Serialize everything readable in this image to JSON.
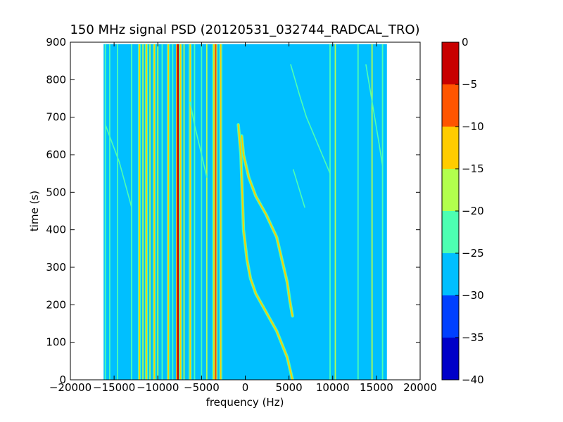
{
  "chart_data": {
    "type": "heatmap",
    "title": "150 MHz signal PSD (20120531_032744_RADCAL_TRO)",
    "xlabel": "frequency (Hz)",
    "ylabel": "time (s)",
    "xlim": [
      -20000,
      20000
    ],
    "ylim": [
      0,
      900
    ],
    "xticks": [
      -20000,
      -15000,
      -10000,
      -5000,
      0,
      5000,
      10000,
      15000,
      20000
    ],
    "xtick_labels": [
      "−20000",
      "−15000",
      "−10000",
      "−5000",
      "0",
      "5000",
      "10000",
      "15000",
      "20000"
    ],
    "yticks": [
      0,
      100,
      200,
      300,
      400,
      500,
      600,
      700,
      800,
      900
    ],
    "ytick_labels": [
      "0",
      "100",
      "200",
      "300",
      "400",
      "500",
      "600",
      "700",
      "800",
      "900"
    ],
    "data_extent": {
      "freq_range": [
        -16200,
        16200
      ],
      "time_range": [
        0,
        895
      ]
    },
    "background_level": -27.5,
    "colorbar": {
      "levels": [
        -40,
        -35,
        -30,
        -25,
        -20,
        -15,
        -10,
        -5,
        0
      ],
      "tick_labels": [
        "−40",
        "−35",
        "−30",
        "−25",
        "−20",
        "−15",
        "−10",
        "−5",
        "0"
      ],
      "colors": [
        "#0000c8",
        "#0040ff",
        "#00bfff",
        "#4dffb2",
        "#b2ff4d",
        "#ffcc00",
        "#ff5500",
        "#c80000"
      ]
    },
    "vertical_lines": [
      {
        "freq": -16000,
        "level": -22.5
      },
      {
        "freq": -15500,
        "level": -22.5
      },
      {
        "freq": -14600,
        "level": -22.5
      },
      {
        "freq": -13000,
        "level": -22.5
      },
      {
        "freq": -12100,
        "level": -12.5
      },
      {
        "freq": -11700,
        "level": -17.5
      },
      {
        "freq": -11300,
        "level": -12.5
      },
      {
        "freq": -10900,
        "level": -17.5
      },
      {
        "freq": -10400,
        "level": -12.5
      },
      {
        "freq": -10000,
        "level": -17.5
      },
      {
        "freq": -9500,
        "level": -22.5
      },
      {
        "freq": -8800,
        "level": -12.5
      },
      {
        "freq": -8300,
        "level": -22.5
      },
      {
        "freq": -7700,
        "level": -2.5
      },
      {
        "freq": -7400,
        "level": -12.5
      },
      {
        "freq": -7000,
        "level": -17.5
      },
      {
        "freq": -6300,
        "level": -12.5
      },
      {
        "freq": -5800,
        "level": -22.5
      },
      {
        "freq": -5000,
        "level": -22.5
      },
      {
        "freq": -4400,
        "level": -17.5
      },
      {
        "freq": -3600,
        "level": -12.5
      },
      {
        "freq": -3400,
        "level": -7.5
      },
      {
        "freq": -2800,
        "level": -12.5
      },
      {
        "freq": 9700,
        "level": -22.5
      },
      {
        "freq": 10300,
        "level": -17.5
      },
      {
        "freq": 12900,
        "level": -22.5
      },
      {
        "freq": 14500,
        "level": -17.5
      },
      {
        "freq": 15700,
        "level": -22.5
      }
    ],
    "drift_tracks": [
      {
        "level": -12.5,
        "points": [
          [
            5400,
            0
          ],
          [
            4800,
            60
          ],
          [
            3600,
            130
          ],
          [
            2400,
            180
          ],
          [
            1200,
            230
          ],
          [
            600,
            270
          ],
          [
            200,
            320
          ],
          [
            -200,
            400
          ],
          [
            -500,
            600
          ],
          [
            -800,
            680
          ]
        ]
      },
      {
        "level": -12.5,
        "points": [
          [
            5400,
            170
          ],
          [
            5100,
            210
          ],
          [
            4800,
            260
          ],
          [
            4300,
            310
          ],
          [
            3600,
            380
          ],
          [
            2400,
            440
          ],
          [
            1200,
            490
          ],
          [
            400,
            540
          ],
          [
            -200,
            600
          ],
          [
            -400,
            650
          ]
        ]
      },
      {
        "level": -22.5,
        "points": [
          [
            9700,
            550
          ],
          [
            8800,
            600
          ],
          [
            7900,
            650
          ],
          [
            7000,
            700
          ],
          [
            6200,
            760
          ],
          [
            5200,
            840
          ]
        ]
      },
      {
        "level": -22.5,
        "points": [
          [
            15700,
            570
          ],
          [
            15300,
            630
          ],
          [
            14800,
            700
          ],
          [
            14300,
            770
          ],
          [
            13800,
            840
          ]
        ]
      },
      {
        "level": -22.5,
        "points": [
          [
            -16000,
            680
          ],
          [
            -14400,
            580
          ],
          [
            -13700,
            520
          ],
          [
            -13000,
            460
          ]
        ]
      },
      {
        "level": -22.5,
        "points": [
          [
            -6300,
            740
          ],
          [
            -5800,
            680
          ],
          [
            -5000,
            600
          ],
          [
            -4400,
            540
          ]
        ]
      },
      {
        "level": -22.5,
        "points": [
          [
            5500,
            560
          ],
          [
            6800,
            460
          ]
        ]
      }
    ]
  }
}
